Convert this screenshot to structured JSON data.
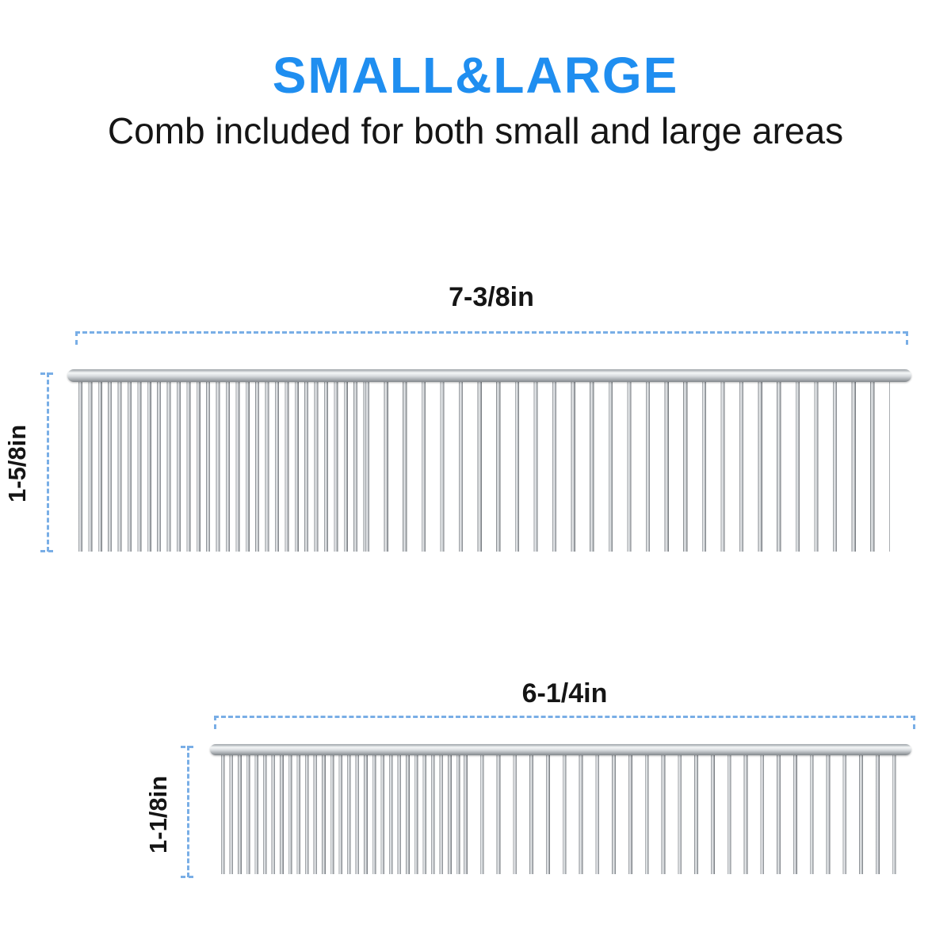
{
  "header": {
    "title": "SMALL&LARGE",
    "subtitle": "Comb included for both small and large areas"
  },
  "colors": {
    "title_blue": "#1f8ef0",
    "line_blue": "#79aee6",
    "text_black": "#151515"
  },
  "combs": [
    {
      "id": "large",
      "width_label": "7-3/8in",
      "height_label": "1-5/8in"
    },
    {
      "id": "small",
      "width_label": "6-1/4in",
      "height_label": "1-1/8in"
    }
  ]
}
